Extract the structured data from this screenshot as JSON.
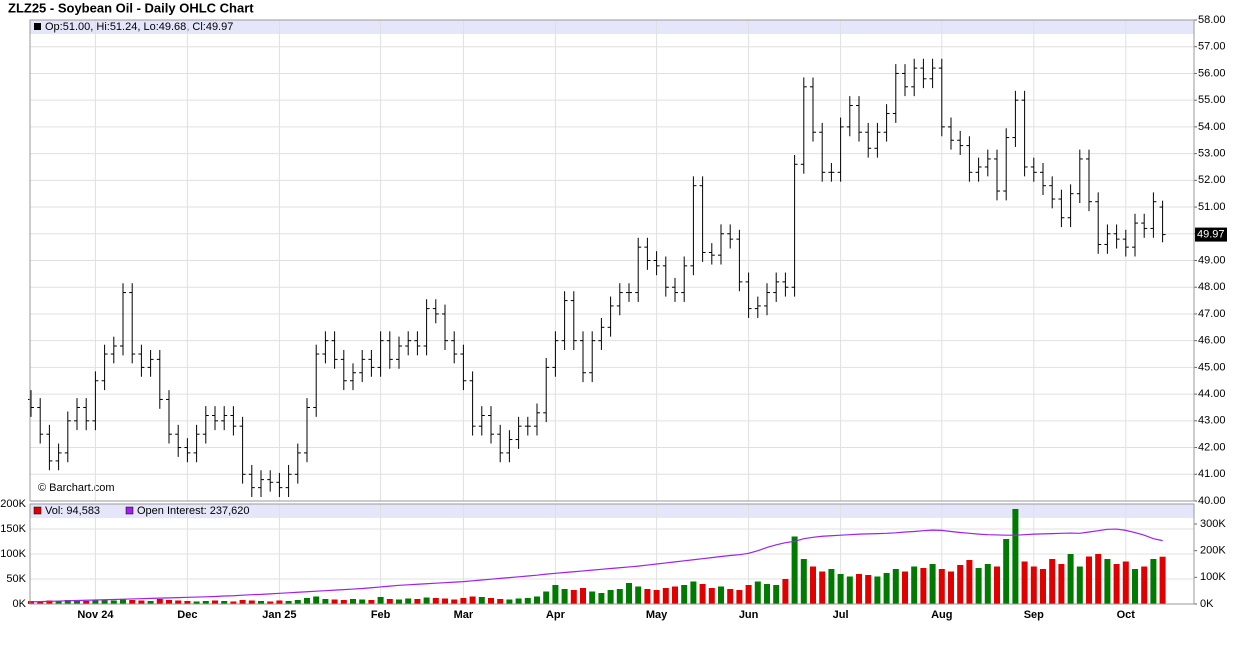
{
  "chart_data": [
    {
      "type": "ohlc",
      "title": "ZLZ25 - Soybean Oil - Daily OHLC Chart",
      "legend_text": "Op:51.00, Hi:51.24, Lo:49.68, Cl:49.97",
      "credit": "© Barchart.com",
      "color": "#000000",
      "open": [
        43.8,
        43.5,
        42.5,
        41.5,
        41.8,
        43.0,
        43.5,
        43.0,
        44.5,
        45.5,
        45.8,
        47.8,
        45.5,
        45.0,
        45.3,
        43.8,
        42.5,
        42.0,
        41.8,
        42.5,
        43.2,
        43.0,
        43.2,
        42.8,
        41.0,
        40.5,
        40.8,
        40.7,
        40.5,
        41.0,
        41.8,
        43.5,
        45.5,
        46.0,
        45.3,
        44.5,
        44.8,
        45.3,
        45.0,
        46.0,
        45.3,
        45.8,
        46.0,
        45.8,
        47.2,
        47.0,
        46.0,
        45.5,
        44.5,
        42.8,
        43.2,
        42.5,
        41.8,
        42.3,
        42.8,
        42.8,
        43.3,
        45.0,
        46.0,
        47.5,
        46.0,
        44.8,
        46.0,
        46.5,
        47.3,
        47.8,
        47.8,
        49.5,
        49.0,
        48.8,
        48.0,
        47.8,
        48.8,
        51.8,
        49.3,
        49.2,
        50.0,
        49.8,
        48.2,
        47.2,
        47.3,
        47.8,
        48.2,
        48.0,
        52.6,
        55.5,
        53.8,
        52.3,
        52.3,
        54.0,
        54.8,
        53.8,
        53.2,
        53.8,
        54.5,
        56.0,
        55.5,
        56.2,
        55.8,
        56.2,
        54.0,
        53.5,
        53.3,
        52.3,
        52.5,
        52.8,
        51.6,
        53.6,
        55.0,
        52.5,
        52.3,
        51.8,
        51.3,
        50.6,
        51.5,
        52.8,
        51.2,
        49.6,
        50.0,
        49.8,
        49.5,
        50.4,
        50.2,
        51.0
      ],
      "high": [
        44.15,
        43.85,
        42.85,
        42.15,
        43.35,
        43.85,
        43.85,
        44.85,
        45.85,
        46.15,
        48.15,
        48.15,
        45.85,
        45.65,
        45.65,
        44.15,
        42.85,
        42.35,
        42.85,
        43.55,
        43.55,
        43.55,
        43.55,
        43.15,
        41.35,
        41.15,
        41.15,
        41.05,
        41.35,
        42.15,
        43.85,
        45.85,
        46.35,
        46.35,
        45.65,
        45.15,
        45.65,
        45.65,
        46.35,
        46.35,
        46.15,
        46.35,
        46.35,
        47.55,
        47.55,
        47.35,
        46.35,
        45.85,
        44.85,
        43.55,
        43.55,
        42.85,
        42.65,
        43.15,
        43.15,
        43.65,
        45.35,
        46.35,
        47.85,
        47.85,
        46.35,
        46.35,
        46.85,
        47.65,
        48.15,
        48.15,
        49.85,
        49.85,
        49.35,
        49.15,
        48.35,
        49.15,
        52.15,
        52.15,
        49.65,
        50.35,
        50.35,
        50.15,
        48.55,
        47.65,
        48.15,
        48.55,
        48.55,
        52.95,
        55.85,
        55.85,
        54.15,
        52.65,
        54.35,
        55.15,
        55.15,
        54.15,
        54.15,
        54.85,
        56.35,
        56.35,
        56.55,
        56.55,
        56.55,
        56.55,
        54.35,
        53.85,
        53.65,
        52.85,
        53.15,
        53.15,
        53.95,
        55.35,
        55.35,
        52.85,
        52.65,
        52.15,
        51.65,
        51.85,
        53.15,
        53.15,
        51.55,
        50.35,
        50.35,
        50.15,
        50.75,
        50.75,
        51.55,
        51.24
      ],
      "low": [
        43.15,
        42.15,
        41.15,
        41.15,
        41.45,
        42.65,
        42.65,
        42.65,
        44.15,
        45.15,
        45.45,
        45.15,
        44.65,
        44.65,
        43.45,
        42.15,
        41.65,
        41.45,
        41.45,
        42.15,
        42.65,
        42.65,
        42.45,
        40.65,
        40.15,
        40.15,
        40.35,
        40.15,
        40.15,
        40.65,
        41.45,
        43.15,
        45.15,
        44.95,
        44.15,
        44.15,
        44.45,
        44.65,
        44.65,
        44.95,
        44.95,
        45.45,
        45.45,
        45.45,
        46.65,
        45.65,
        45.15,
        44.15,
        42.45,
        42.45,
        42.15,
        41.45,
        41.45,
        41.95,
        42.45,
        42.45,
        42.95,
        44.65,
        45.65,
        45.65,
        44.45,
        44.45,
        45.65,
        46.15,
        46.95,
        47.45,
        47.45,
        48.65,
        48.45,
        47.65,
        47.45,
        47.45,
        48.45,
        48.95,
        48.85,
        48.85,
        49.45,
        47.85,
        46.85,
        46.85,
        46.95,
        47.45,
        47.65,
        47.65,
        52.25,
        53.45,
        51.95,
        51.95,
        51.95,
        53.65,
        53.45,
        52.85,
        52.85,
        53.45,
        54.15,
        55.15,
        55.15,
        55.45,
        55.45,
        53.65,
        53.15,
        52.95,
        51.95,
        51.95,
        52.15,
        51.25,
        51.25,
        53.25,
        52.15,
        51.95,
        51.45,
        50.95,
        50.25,
        50.25,
        51.15,
        50.85,
        49.25,
        49.25,
        49.45,
        49.15,
        49.15,
        49.85,
        49.85,
        49.68
      ],
      "close": [
        43.5,
        42.5,
        41.5,
        41.8,
        43.0,
        43.5,
        43.0,
        44.5,
        45.5,
        45.8,
        47.8,
        45.5,
        45.0,
        45.3,
        43.8,
        42.5,
        42.0,
        41.8,
        42.5,
        43.2,
        43.0,
        43.2,
        42.8,
        41.0,
        40.5,
        40.8,
        40.7,
        40.5,
        41.0,
        41.8,
        43.5,
        45.5,
        46.0,
        45.3,
        44.5,
        44.8,
        45.3,
        45.0,
        46.0,
        45.3,
        45.8,
        46.0,
        45.8,
        47.2,
        47.0,
        46.0,
        45.5,
        44.5,
        42.8,
        43.2,
        42.5,
        41.8,
        42.3,
        42.8,
        42.8,
        43.3,
        45.0,
        46.0,
        47.5,
        46.0,
        44.8,
        46.0,
        46.5,
        47.3,
        47.8,
        47.8,
        49.5,
        49.0,
        48.8,
        48.0,
        47.8,
        48.8,
        51.8,
        49.3,
        49.2,
        50.0,
        49.8,
        48.2,
        47.2,
        47.3,
        47.8,
        48.2,
        48.0,
        52.6,
        55.5,
        53.8,
        52.3,
        52.3,
        54.0,
        54.8,
        53.8,
        53.2,
        53.8,
        54.5,
        56.0,
        55.5,
        56.2,
        55.8,
        56.2,
        54.0,
        53.5,
        53.3,
        52.3,
        52.5,
        52.8,
        51.6,
        53.6,
        55.0,
        52.5,
        52.3,
        51.8,
        51.3,
        50.6,
        51.5,
        52.8,
        51.2,
        49.6,
        50.0,
        49.8,
        49.5,
        50.4,
        50.2,
        51.2,
        49.97
      ],
      "ylim": [
        40,
        58
      ],
      "yticks": [
        {
          "value": 40,
          "label": "40.00"
        },
        {
          "value": 41,
          "label": "41.00"
        },
        {
          "value": 42,
          "label": "42.00"
        },
        {
          "value": 43,
          "label": "43.00"
        },
        {
          "value": 44,
          "label": "44.00"
        },
        {
          "value": 45,
          "label": "45.00"
        },
        {
          "value": 46,
          "label": "46.00"
        },
        {
          "value": 47,
          "label": "47.00"
        },
        {
          "value": 48,
          "label": "48.00"
        },
        {
          "value": 49,
          "label": "49.00"
        },
        {
          "value": 50,
          "label": "50.00"
        },
        {
          "value": 51,
          "label": "51.00"
        },
        {
          "value": 52,
          "label": "52.00"
        },
        {
          "value": 53,
          "label": "53.00"
        },
        {
          "value": 54,
          "label": "54.00"
        },
        {
          "value": 55,
          "label": "55.00"
        },
        {
          "value": 56,
          "label": "56.00"
        },
        {
          "value": 57,
          "label": "57.00"
        },
        {
          "value": 58,
          "label": "58.00"
        }
      ],
      "grid": true
    },
    {
      "type": "bar",
      "categories": [
        null,
        null,
        null,
        null,
        null,
        null,
        null,
        "Nov 24",
        null,
        null,
        null,
        null,
        null,
        null,
        null,
        null,
        null,
        "Dec",
        null,
        null,
        null,
        null,
        null,
        null,
        null,
        null,
        null,
        "Jan 25",
        null,
        null,
        null,
        null,
        null,
        null,
        null,
        null,
        null,
        null,
        "Feb",
        null,
        null,
        null,
        null,
        null,
        null,
        null,
        null,
        "Mar",
        null,
        null,
        null,
        null,
        null,
        null,
        null,
        null,
        null,
        "Apr",
        null,
        null,
        null,
        null,
        null,
        null,
        null,
        null,
        null,
        null,
        "May",
        null,
        null,
        null,
        null,
        null,
        null,
        null,
        null,
        null,
        "Jun",
        null,
        null,
        null,
        null,
        null,
        null,
        null,
        null,
        null,
        "Jul",
        null,
        null,
        null,
        null,
        null,
        null,
        null,
        null,
        null,
        null,
        "Aug",
        null,
        null,
        null,
        null,
        null,
        null,
        null,
        null,
        null,
        "Sep",
        null,
        null,
        null,
        null,
        null,
        null,
        null,
        null,
        null,
        "Oct",
        null,
        null,
        null,
        null
      ],
      "series": [
        {
          "name": "Vol: 94,583",
          "color": "#e00000",
          "up_color": "#007a00",
          "values": [
            6000,
            5000,
            7000,
            6000,
            8000,
            7000,
            6000,
            9000,
            8000,
            7000,
            9000,
            8000,
            7000,
            6000,
            10000,
            8000,
            7000,
            6000,
            5000,
            6000,
            7000,
            6000,
            5000,
            8000,
            7000,
            6000,
            5000,
            7000,
            6000,
            8000,
            12000,
            15000,
            10000,
            9000,
            8000,
            10000,
            9000,
            8000,
            14000,
            10000,
            9000,
            11000,
            10000,
            13000,
            12000,
            11000,
            9000,
            12000,
            15000,
            14000,
            12000,
            10000,
            9000,
            11000,
            12000,
            15000,
            25000,
            38000,
            30000,
            28000,
            32000,
            25000,
            22000,
            28000,
            30000,
            42000,
            35000,
            30000,
            28000,
            32000,
            35000,
            38000,
            45000,
            40000,
            32000,
            35000,
            30000,
            28000,
            38000,
            45000,
            40000,
            38000,
            50000,
            135000,
            90000,
            75000,
            65000,
            70000,
            60000,
            55000,
            60000,
            58000,
            55000,
            62000,
            70000,
            65000,
            75000,
            72000,
            80000,
            70000,
            65000,
            78000,
            88000,
            72000,
            80000,
            75000,
            130000,
            190000,
            85000,
            75000,
            70000,
            90000,
            80000,
            100000,
            75000,
            95000,
            100000,
            90000,
            80000,
            85000,
            70000,
            75000,
            90000,
            94583
          ]
        },
        {
          "name": "Open Interest: 237,620",
          "color": "#a020f0",
          "axis": "y2",
          "values": [
            8000,
            9000,
            10000,
            11000,
            12000,
            13000,
            14000,
            15000,
            16000,
            17000,
            18000,
            19000,
            20000,
            21000,
            22000,
            23000,
            24000,
            25000,
            26000,
            27000,
            28000,
            30000,
            31000,
            33000,
            35000,
            36000,
            38000,
            40000,
            42000,
            44000,
            46000,
            48000,
            50000,
            52000,
            54000,
            56000,
            58000,
            61000,
            64000,
            67000,
            70000,
            72000,
            74000,
            76000,
            78000,
            80000,
            82000,
            84000,
            87000,
            90000,
            93000,
            96000,
            99000,
            102000,
            105000,
            108000,
            112000,
            115000,
            118000,
            121000,
            124000,
            127000,
            130000,
            133000,
            136000,
            139000,
            142000,
            146000,
            150000,
            154000,
            158000,
            162000,
            166000,
            170000,
            174000,
            178000,
            182000,
            185000,
            190000,
            200000,
            212000,
            222000,
            230000,
            235000,
            245000,
            250000,
            254000,
            256000,
            258000,
            260000,
            262000,
            263000,
            264000,
            265000,
            267000,
            270000,
            272000,
            275000,
            277000,
            276000,
            272000,
            268000,
            265000,
            262000,
            260000,
            259000,
            258000,
            258000,
            260000,
            262000,
            263000,
            264000,
            265000,
            266000,
            265000,
            270000,
            275000,
            280000,
            281000,
            276000,
            268000,
            258000,
            245000,
            237620
          ]
        }
      ],
      "ylim": [
        0,
        200000
      ],
      "yticks": [
        {
          "value": 0,
          "label": "0K"
        },
        {
          "value": 50000,
          "label": "50K"
        },
        {
          "value": 100000,
          "label": "100K"
        },
        {
          "value": 150000,
          "label": "150K"
        },
        {
          "value": 200000,
          "label": "200K"
        }
      ],
      "y2lim": [
        0,
        375000
      ],
      "y2ticks": [
        {
          "value": 0,
          "label": "0K"
        },
        {
          "value": 100000,
          "label": "100K"
        },
        {
          "value": 200000,
          "label": "200K"
        },
        {
          "value": 300000,
          "label": "300K"
        }
      ],
      "grid": true
    }
  ]
}
